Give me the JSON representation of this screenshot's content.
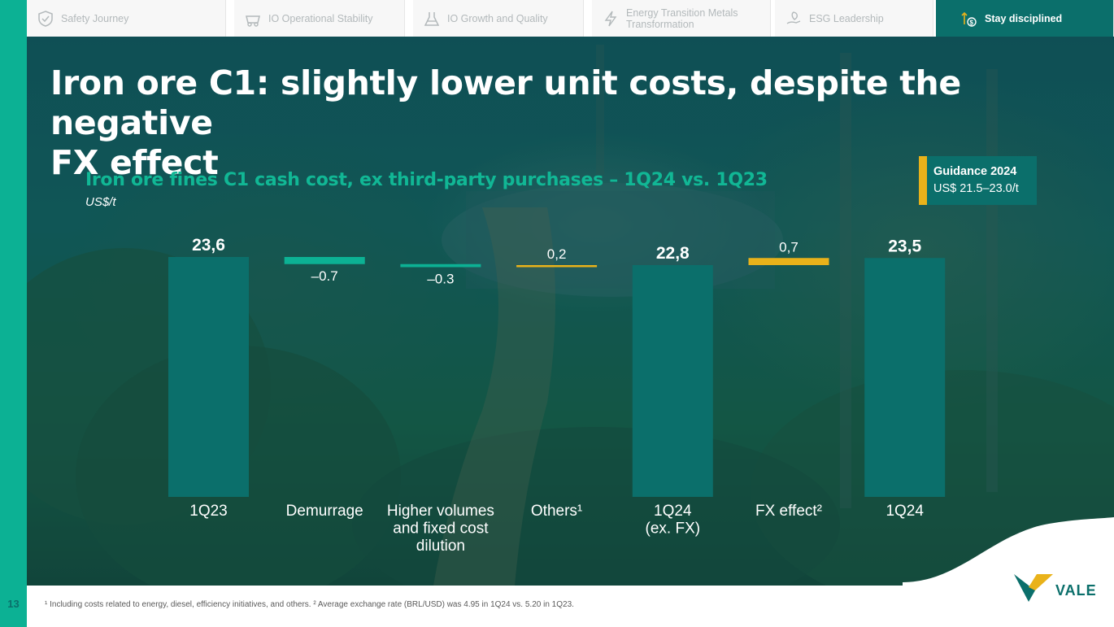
{
  "page_number": "13",
  "tabs": [
    {
      "label": "Safety Journey",
      "icon": "shield-check-icon",
      "active": false
    },
    {
      "label": "IO Operational Stability",
      "icon": "mine-cart-icon",
      "active": false
    },
    {
      "label": "IO Growth and Quality",
      "icon": "beaker-icon",
      "active": false
    },
    {
      "label": "Energy Transition Metals Transformation",
      "label_line1": "Energy Transition Metals",
      "label_line2": "Transformation",
      "icon": "lightning-icon",
      "active": false
    },
    {
      "label": "ESG Leadership",
      "icon": "hand-leaf-icon",
      "active": false
    },
    {
      "label": "Stay disciplined",
      "icon": "dollar-arrow-icon",
      "active": true
    }
  ],
  "title": "Iron ore C1: slightly lower unit costs, despite the negative FX effect",
  "title_line1": "Iron ore C1: slightly lower unit costs, despite the negative",
  "title_line2": "FX effect",
  "guidance": {
    "heading": "Guidance 2024",
    "value": "US$ 21.5–23.0/t"
  },
  "colors": {
    "teal_dark": "#0b6f6b",
    "teal_light": "#0cb194",
    "yellow": "#e9b21a",
    "title_green": "#11b795"
  },
  "chart_data": {
    "type": "bar",
    "subtype": "waterfall",
    "title": "Iron ore fines C1 cash cost, ex third-party purchases – 1Q24 vs. 1Q23",
    "ylabel": "US$/t",
    "ylim": [
      0,
      23.6
    ],
    "categories": [
      "1Q23",
      "Demurrage",
      "Higher volumes and fixed cost dilution",
      "Others¹",
      "1Q24 (ex. FX)",
      "FX effect²",
      "1Q24"
    ],
    "values": [
      23.6,
      -0.7,
      -0.3,
      0.2,
      22.8,
      0.7,
      23.5
    ],
    "data_labels": [
      "23,6",
      "–0.7",
      "–0.3",
      "0,2",
      "22,8",
      "0,7",
      "23,5"
    ],
    "kinds": [
      "total",
      "delta-down",
      "delta-down",
      "delta-up",
      "total",
      "delta-up",
      "total"
    ]
  },
  "footnote": "¹ Including costs related to energy, diesel, efficiency initiatives, and others. ² Average exchange rate (BRL/USD) was 4.95 in 1Q24 vs. 5.20 in 1Q23.",
  "brand": "VALE"
}
